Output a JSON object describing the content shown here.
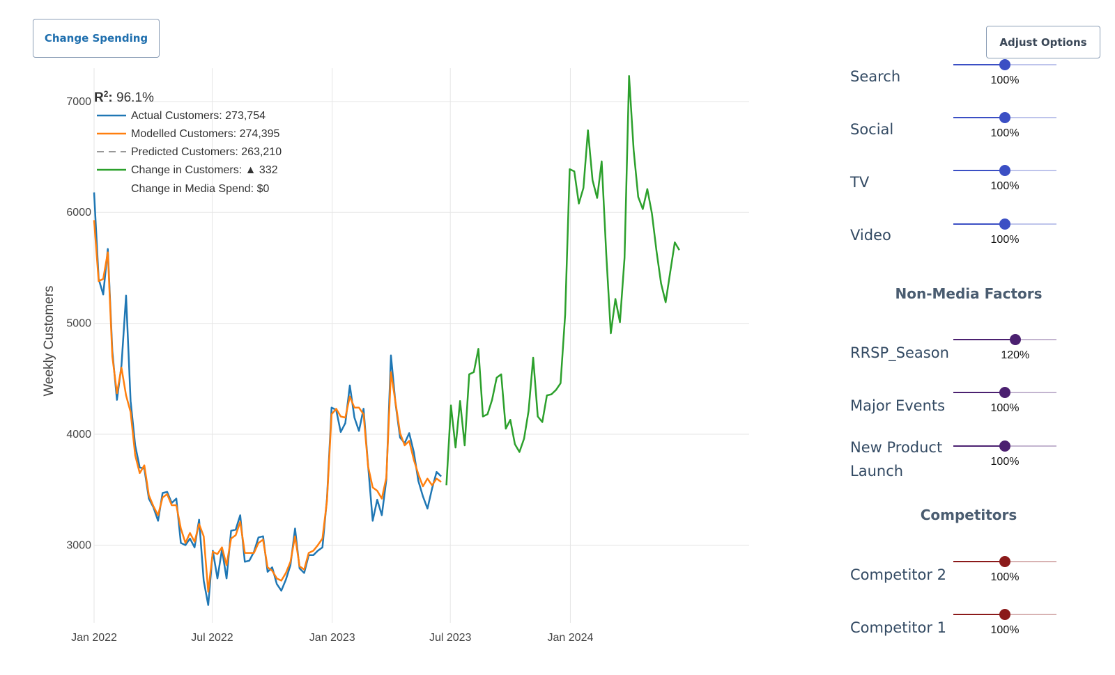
{
  "buttons": {
    "change_spending": "Change Spending",
    "adjust_options": "Adjust Options"
  },
  "legend": {
    "r2_label": "R",
    "r2_sup": "2",
    "r2_value": ": 96.1%",
    "actual": "Actual Customers: 273,754",
    "modelled": "Modelled Customers: 274,395",
    "predicted": "Predicted Customers: 263,210",
    "change_customers": "Change in Customers: ▲ 332",
    "change_spend": "Change in Media Spend: $0"
  },
  "colors": {
    "actual": "#1f77b4",
    "modelled": "#ff7f0e",
    "change": "#2ca02c",
    "media": "#3b4fc4",
    "nonmedia": "#4b2070",
    "competitor": "#8b1a1a"
  },
  "chart_data": {
    "type": "line",
    "ylabel": "Weekly Customers",
    "ylim": [
      2300,
      7300
    ],
    "yticks": [
      3000,
      4000,
      5000,
      6000,
      7000
    ],
    "xlim": [
      "2022-01-01",
      "2024-10-01"
    ],
    "xticks": [
      {
        "date": "2022-01-01",
        "label": "Jan 2022"
      },
      {
        "date": "2022-07-01",
        "label": "Jul 2022"
      },
      {
        "date": "2023-01-01",
        "label": "Jan 2023"
      },
      {
        "date": "2023-07-01",
        "label": "Jul 2023"
      },
      {
        "date": "2024-01-01",
        "label": "Jan 2024"
      }
    ],
    "series": [
      {
        "name": "Actual Customers",
        "color": "#1f77b4",
        "start": "2022-01-01",
        "step_days": 7,
        "values": [
          6180,
          5400,
          5260,
          5670,
          4750,
          4310,
          4620,
          5250,
          4300,
          3900,
          3700,
          3690,
          3420,
          3340,
          3220,
          3470,
          3480,
          3380,
          3420,
          3020,
          3000,
          3060,
          2980,
          3230,
          2680,
          2460,
          2950,
          2700,
          2960,
          2700,
          3130,
          3140,
          3270,
          2850,
          2860,
          2940,
          3070,
          3080,
          2760,
          2800,
          2650,
          2590,
          2690,
          2820,
          3150,
          2790,
          2750,
          2910,
          2910,
          2950,
          2980,
          3420,
          4240,
          4220,
          4020,
          4100,
          4440,
          4150,
          4030,
          4230,
          3720,
          3220,
          3410,
          3270,
          3590,
          4710,
          4280,
          3970,
          3920,
          4010,
          3840,
          3580,
          3440,
          3330,
          3510,
          3660,
          3620
        ]
      },
      {
        "name": "Modelled Customers",
        "color": "#ff7f0e",
        "start": "2022-01-01",
        "step_days": 7,
        "values": [
          5930,
          5380,
          5400,
          5640,
          4700,
          4370,
          4600,
          4350,
          4200,
          3810,
          3650,
          3720,
          3450,
          3350,
          3270,
          3430,
          3460,
          3360,
          3360,
          3150,
          3020,
          3110,
          3030,
          3190,
          3080,
          2580,
          2940,
          2920,
          2980,
          2820,
          3060,
          3090,
          3210,
          2930,
          2930,
          2930,
          3020,
          3050,
          2800,
          2770,
          2700,
          2680,
          2750,
          2850,
          3080,
          2810,
          2780,
          2930,
          2950,
          3000,
          3060,
          3400,
          4180,
          4230,
          4160,
          4150,
          4340,
          4240,
          4240,
          4180,
          3710,
          3520,
          3490,
          3420,
          3610,
          4560,
          4290,
          4010,
          3900,
          3940,
          3770,
          3640,
          3530,
          3600,
          3540,
          3600,
          3570
        ]
      },
      {
        "name": "Change in Customers",
        "color": "#2ca02c",
        "start": "2023-06-25",
        "step_days": 7,
        "values": [
          3540,
          4260,
          3880,
          4300,
          3900,
          4540,
          4560,
          4770,
          4160,
          4180,
          4310,
          4510,
          4540,
          4050,
          4130,
          3910,
          3840,
          3960,
          4210,
          4690,
          4160,
          4110,
          4350,
          4360,
          4400,
          4460,
          5080,
          6390,
          6370,
          6080,
          6220,
          6740,
          6290,
          6130,
          6460,
          5620,
          4910,
          5220,
          5010,
          5590,
          7230,
          6560,
          6140,
          6030,
          6210,
          5990,
          5650,
          5360,
          5190,
          5460,
          5730,
          5660
        ]
      }
    ]
  },
  "sliders": {
    "media": [
      {
        "label": "Search",
        "pct": "100%",
        "level": 0.5
      },
      {
        "label": "Social",
        "pct": "100%",
        "level": 0.5
      },
      {
        "label": "TV",
        "pct": "100%",
        "level": 0.5
      },
      {
        "label": "Video",
        "pct": "100%",
        "level": 0.5
      }
    ],
    "non_media_title": "Non-Media Factors",
    "non_media": [
      {
        "label": "RRSP_Season",
        "pct": "120%",
        "level": 0.6
      },
      {
        "label": "Major Events",
        "pct": "100%",
        "level": 0.5
      },
      {
        "label": "New Product",
        "label2": "Launch",
        "pct": "100%",
        "level": 0.5
      }
    ],
    "competitors_title": "Competitors",
    "competitors": [
      {
        "label": "Competitor 2",
        "pct": "100%",
        "level": 0.5
      },
      {
        "label": "Competitor 1",
        "pct": "100%",
        "level": 0.5
      }
    ]
  }
}
